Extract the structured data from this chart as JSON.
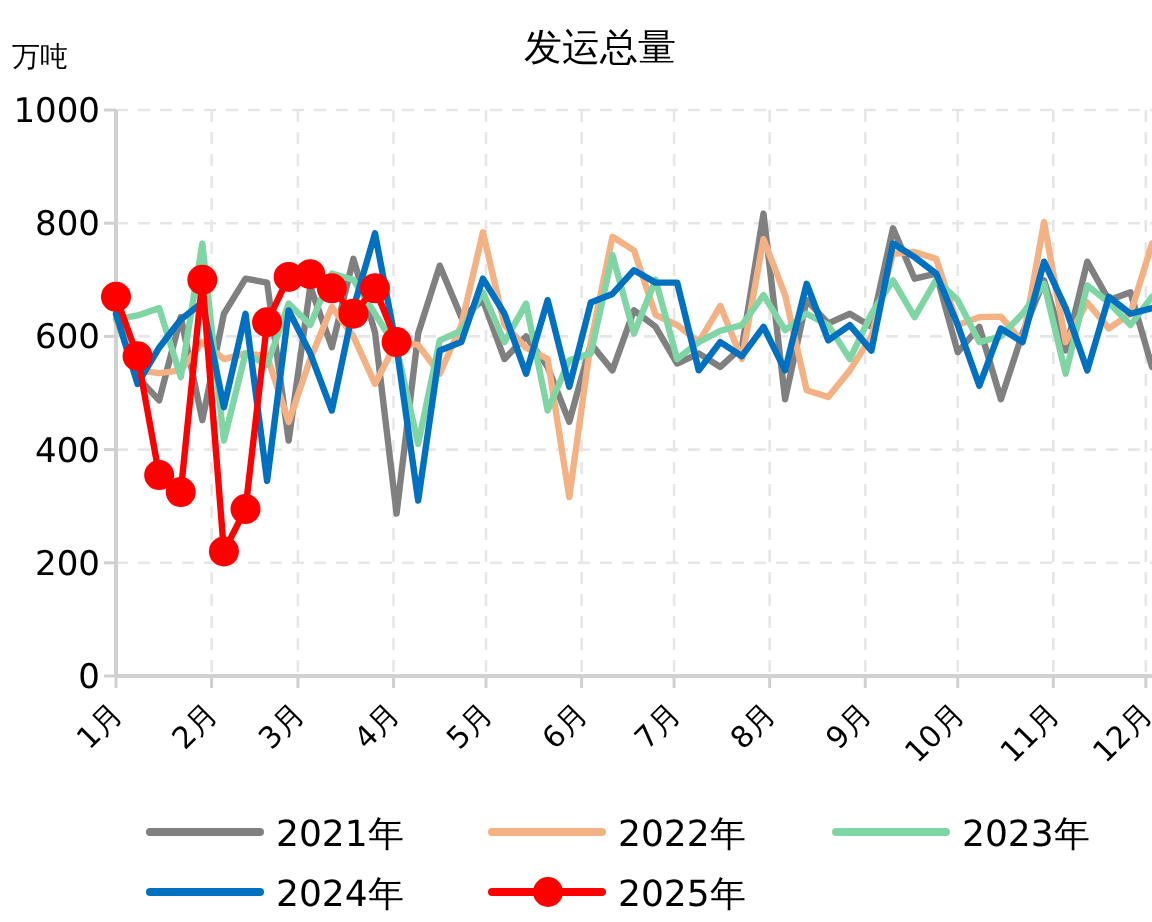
{
  "chart_data": {
    "type": "line",
    "title": "发运总量",
    "ylabel": "万吨",
    "x": [
      "--01-01",
      "--01-08",
      "--01-15",
      "--01-22",
      "--01-29",
      "--02-05",
      "--02-12",
      "--02-19",
      "--02-26",
      "--03-05",
      "--03-12",
      "--03-19",
      "--03-26",
      "--04-02",
      "--04-09",
      "--04-16",
      "--04-23",
      "--04-30",
      "--05-07",
      "--05-14",
      "--05-21",
      "--05-28",
      "--06-04",
      "--06-11",
      "--06-18",
      "--06-25",
      "--07-02",
      "--07-09",
      "--07-16",
      "--07-23",
      "--07-30",
      "--08-06",
      "--08-13",
      "--08-20",
      "--08-27",
      "--09-03",
      "--09-10",
      "--09-17",
      "--09-24",
      "--10-01",
      "--10-08",
      "--10-15",
      "--10-22",
      "--10-29",
      "--11-05",
      "--11-12",
      "--11-19",
      "--11-26",
      "--12-03"
    ],
    "xlim": [
      "--01-01",
      "--12-03"
    ],
    "xticks": [
      {
        "value": "--01-01",
        "label": "1月"
      },
      {
        "value": "--02-01",
        "label": "2月"
      },
      {
        "value": "--03-01",
        "label": "3月"
      },
      {
        "value": "--04-01",
        "label": "4月"
      },
      {
        "value": "--05-01",
        "label": "5月"
      },
      {
        "value": "--06-01",
        "label": "6月"
      },
      {
        "value": "--07-01",
        "label": "7月"
      },
      {
        "value": "--08-01",
        "label": "8月"
      },
      {
        "value": "--09-01",
        "label": "9月"
      },
      {
        "value": "--10-01",
        "label": "10月"
      },
      {
        "value": "--11-01",
        "label": "11月"
      },
      {
        "value": "--12-01",
        "label": "12月"
      }
    ],
    "ylim": [
      0,
      1000
    ],
    "yticks": [
      0,
      200,
      400,
      600,
      800,
      1000
    ],
    "grid": true,
    "legend": "bottom",
    "series": [
      {
        "name": "2021年",
        "color": "#808080",
        "marker": "none",
        "values": [
          640,
          528,
          487,
          634,
          452,
          640,
          702,
          695,
          416,
          688,
          581,
          737,
          607,
          287,
          605,
          725,
          634,
          664,
          560,
          600,
          546,
          449,
          587,
          540,
          646,
          617,
          552,
          570,
          546,
          581,
          817,
          489,
          664,
          623,
          640,
          617,
          791,
          702,
          711,
          572,
          617,
          489,
          605,
          699,
          575,
          732,
          664,
          678,
          546
        ]
      },
      {
        "name": "2022年",
        "color": "#f4b183",
        "marker": "none",
        "values": [
          630,
          540,
          535,
          540,
          590,
          560,
          570,
          565,
          449,
          560,
          652,
          600,
          516,
          590,
          585,
          534,
          620,
          784,
          620,
          580,
          560,
          316,
          590,
          776,
          752,
          638,
          620,
          590,
          654,
          560,
          772,
          673,
          505,
          493,
          540,
          600,
          746,
          749,
          737,
          620,
          634,
          635,
          590,
          802,
          590,
          660,
          614,
          640,
          764
        ]
      },
      {
        "name": "2023年",
        "color": "#7fd6a4",
        "marker": "none",
        "values": [
          630,
          637,
          650,
          528,
          764,
          416,
          570,
          550,
          658,
          620,
          711,
          700,
          640,
          580,
          410,
          593,
          610,
          678,
          590,
          658,
          469,
          558,
          570,
          744,
          605,
          700,
          560,
          590,
          610,
          620,
          673,
          611,
          640,
          620,
          560,
          640,
          699,
          634,
          700,
          664,
          590,
          600,
          640,
          693,
          534,
          690,
          660,
          620,
          670
        ]
      },
      {
        "name": "2024年",
        "color": "#0070c0",
        "marker": "none",
        "values": [
          640,
          516,
          580,
          630,
          660,
          475,
          640,
          345,
          646,
          570,
          469,
          650,
          782,
          581,
          310,
          575,
          590,
          702,
          640,
          534,
          664,
          511,
          660,
          675,
          717,
          695,
          695,
          540,
          590,
          565,
          617,
          540,
          693,
          593,
          620,
          575,
          764,
          740,
          711,
          620,
          513,
          614,
          590,
          732,
          650,
          540,
          670,
          640,
          650
        ]
      },
      {
        "name": "2025年",
        "color": "#ff0000",
        "marker": "circle",
        "x": [
          "--01-01",
          "--01-08",
          "--01-15",
          "--01-22",
          "--01-29",
          "--02-05",
          "--02-12",
          "--02-19",
          "--02-26",
          "--03-05",
          "--03-12",
          "--03-19",
          "--03-26",
          "--04-02"
        ],
        "values": [
          670,
          565,
          355,
          325,
          700,
          220,
          295,
          625,
          705,
          710,
          685,
          640,
          685,
          590
        ]
      }
    ]
  }
}
